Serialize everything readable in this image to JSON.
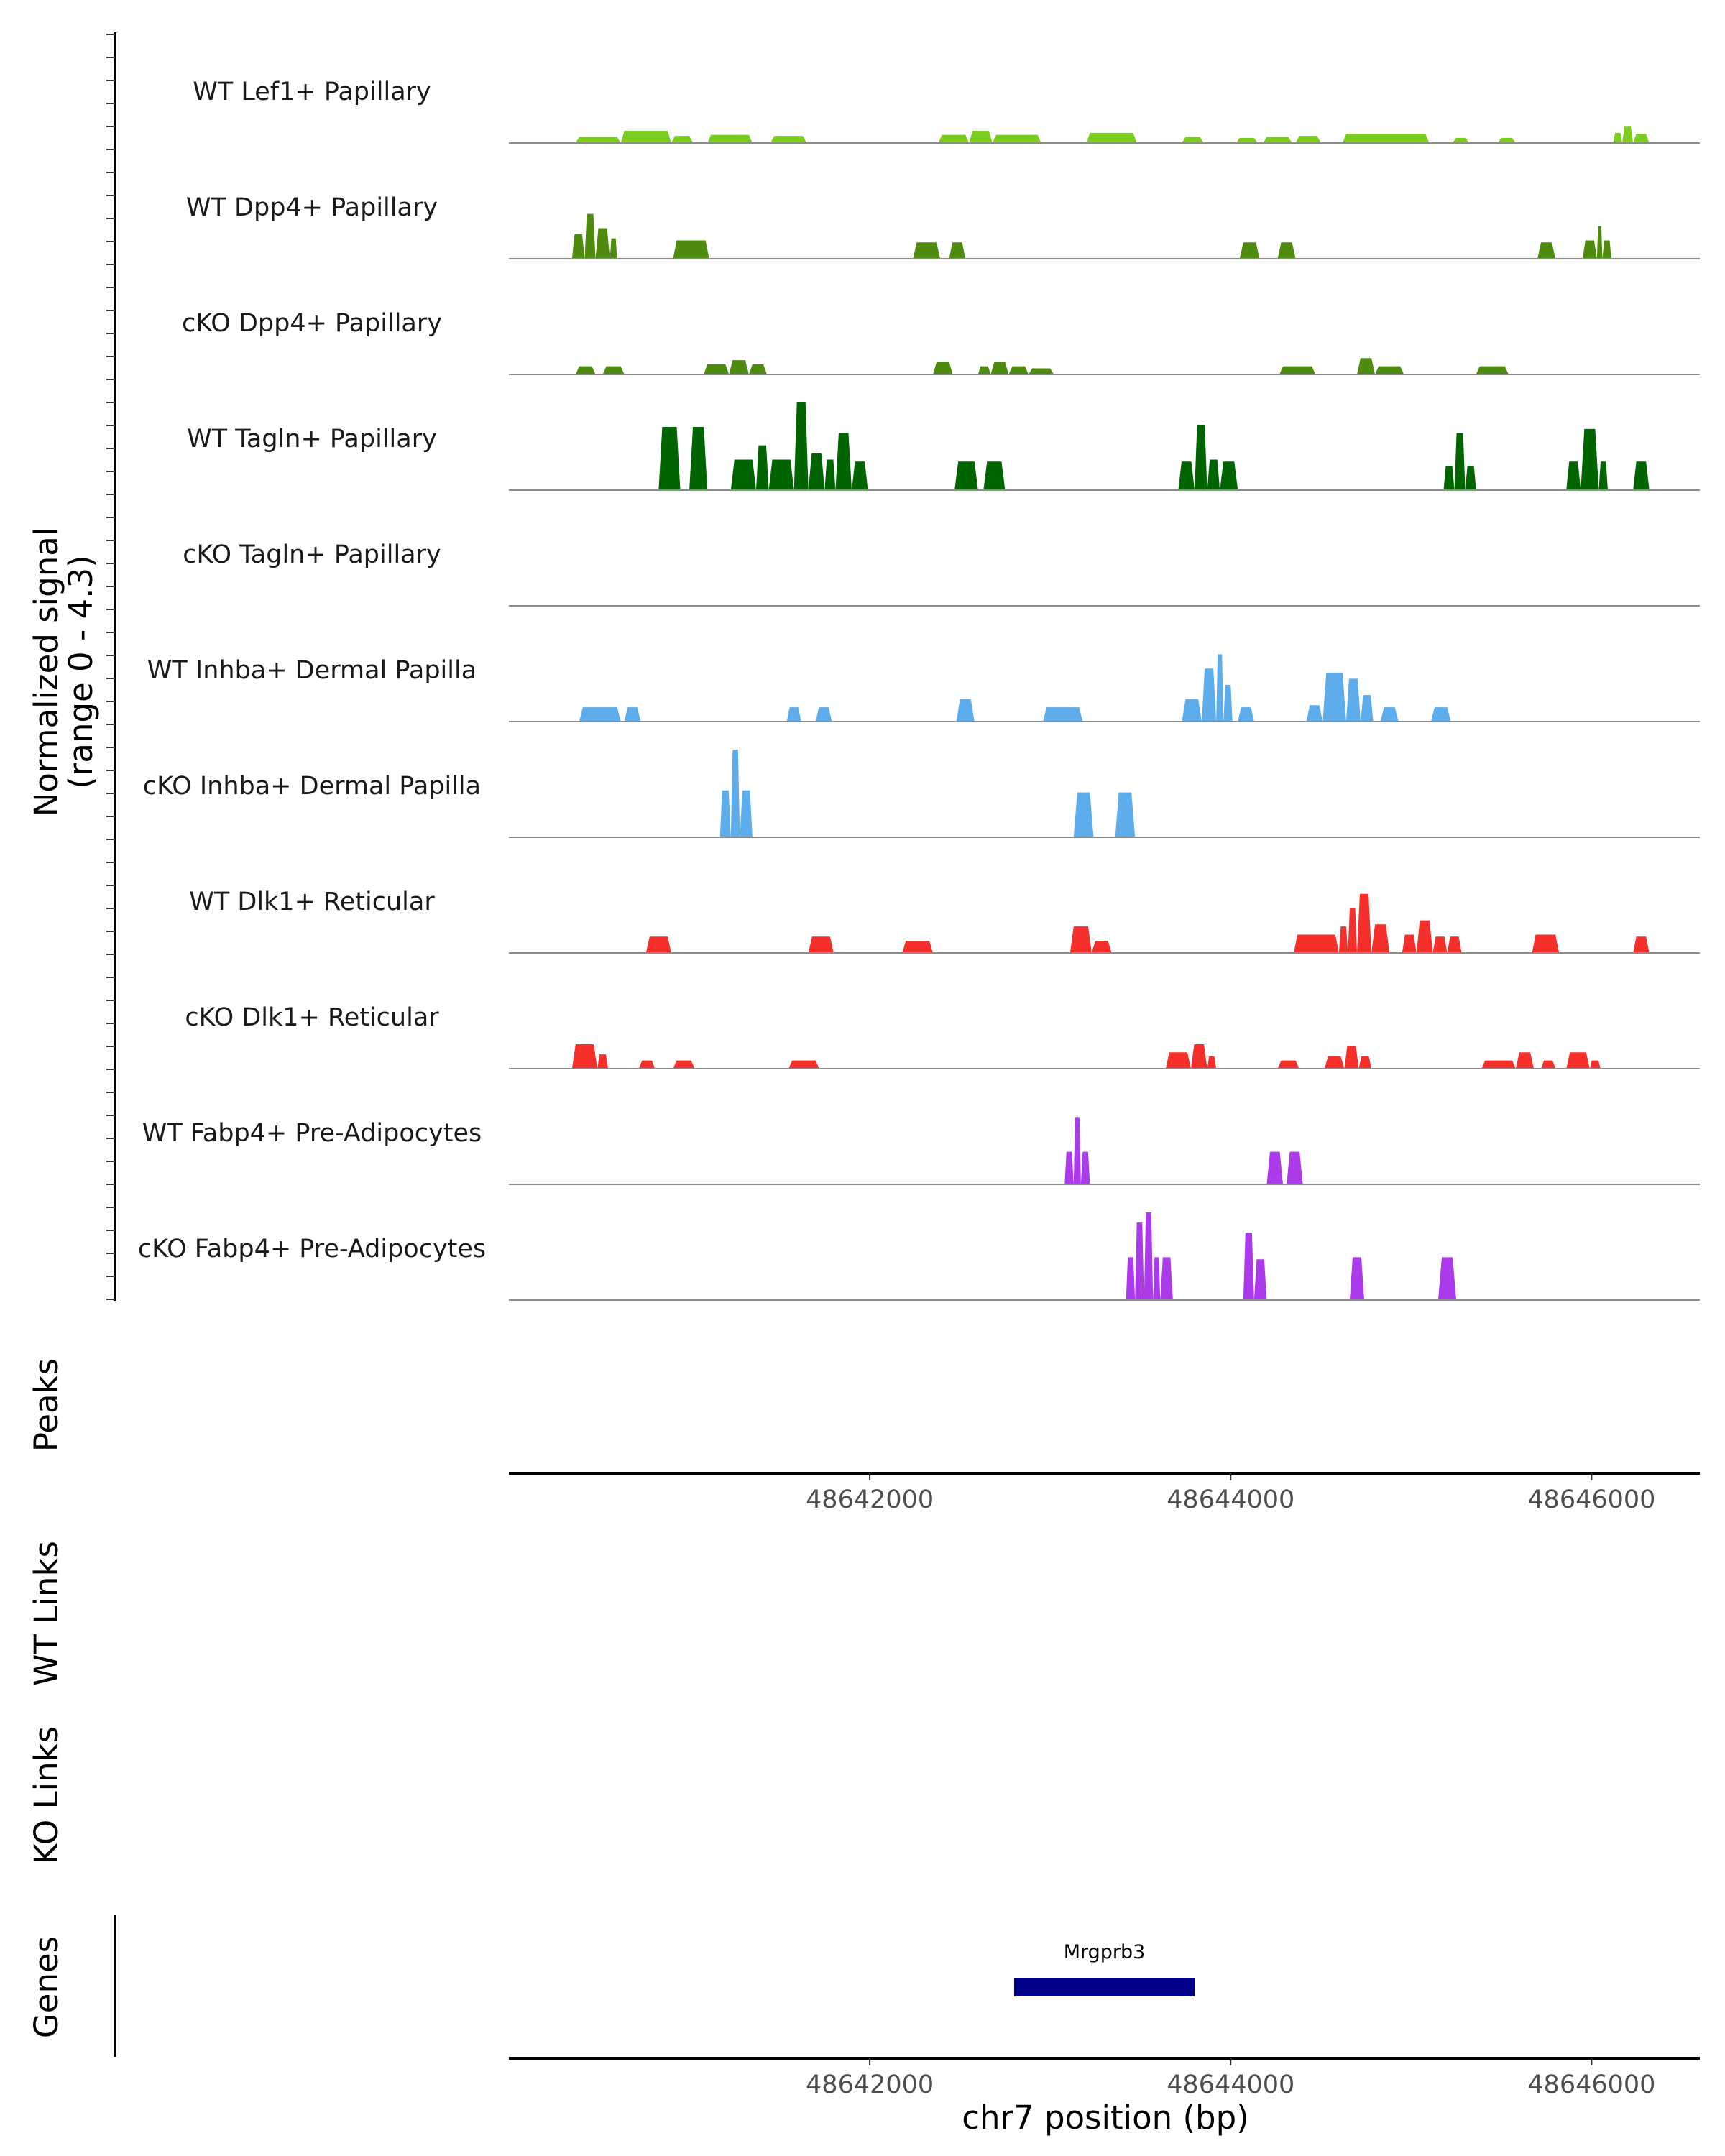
{
  "chart_data": {
    "type": "area",
    "title": "",
    "region": {
      "chromosome": "chr7",
      "start": 48640000,
      "end": 48646600
    },
    "ylabel_signal": "Normalized signal",
    "ylabel_range": "(range 0 - 4.3)",
    "ylim": [
      0,
      4.3
    ],
    "xlabel": "chr7 position (bp)",
    "xticks": [
      48642000,
      48644000,
      48646000
    ],
    "xtick_labels": [
      "48642000",
      "48644000",
      "48646000"
    ],
    "tracks": [
      {
        "name": "WT Lef1+ Papillary",
        "color": "#7CCD1F",
        "segments": [
          [
            48640370,
            48640620,
            0.3
          ],
          [
            48640620,
            48640900,
            0.6
          ],
          [
            48640900,
            48641020,
            0.35
          ],
          [
            48641100,
            48641350,
            0.4
          ],
          [
            48641450,
            48641650,
            0.35
          ],
          [
            48642380,
            48642550,
            0.4
          ],
          [
            48642550,
            48642680,
            0.6
          ],
          [
            48642680,
            48642950,
            0.4
          ],
          [
            48643200,
            48643480,
            0.5
          ],
          [
            48643730,
            48643850,
            0.3
          ],
          [
            48644030,
            48644150,
            0.25
          ],
          [
            48644180,
            48644340,
            0.3
          ],
          [
            48644360,
            48644500,
            0.35
          ],
          [
            48644620,
            48645100,
            0.45
          ],
          [
            48645230,
            48645320,
            0.25
          ],
          [
            48645480,
            48645580,
            0.25
          ],
          [
            48646120,
            48646170,
            0.5
          ],
          [
            48646170,
            48646230,
            0.8
          ],
          [
            48646230,
            48646320,
            0.45
          ]
        ]
      },
      {
        "name": "WT Dpp4+ Papillary",
        "color": "#4E8B0E",
        "segments": [
          [
            48640350,
            48640420,
            1.2
          ],
          [
            48640420,
            48640480,
            2.2
          ],
          [
            48640480,
            48640560,
            1.5
          ],
          [
            48640560,
            48640600,
            1.0
          ],
          [
            48640910,
            48641110,
            0.9
          ],
          [
            48642240,
            48642390,
            0.8
          ],
          [
            48642440,
            48642530,
            0.8
          ],
          [
            48644050,
            48644160,
            0.8
          ],
          [
            48644260,
            48644360,
            0.8
          ],
          [
            48645700,
            48645800,
            0.8
          ],
          [
            48645950,
            48646030,
            0.9
          ],
          [
            48646030,
            48646060,
            1.6
          ],
          [
            48646060,
            48646110,
            0.9
          ]
        ]
      },
      {
        "name": "cKO Dpp4+ Papillary",
        "color": "#4E8B0E",
        "segments": [
          [
            48640370,
            48640480,
            0.4
          ],
          [
            48640520,
            48640640,
            0.4
          ],
          [
            48641080,
            48641220,
            0.5
          ],
          [
            48641220,
            48641330,
            0.7
          ],
          [
            48641330,
            48641430,
            0.5
          ],
          [
            48642350,
            48642460,
            0.6
          ],
          [
            48642600,
            48642670,
            0.4
          ],
          [
            48642670,
            48642770,
            0.6
          ],
          [
            48642770,
            48642880,
            0.4
          ],
          [
            48642880,
            48643020,
            0.3
          ],
          [
            48644270,
            48644470,
            0.4
          ],
          [
            48644700,
            48644800,
            0.8
          ],
          [
            48644800,
            48644960,
            0.4
          ],
          [
            48645360,
            48645540,
            0.4
          ]
        ]
      },
      {
        "name": "WT Tagln+ Papillary",
        "color": "#006400",
        "segments": [
          [
            48640830,
            48640950,
            3.1
          ],
          [
            48641000,
            48641100,
            3.1
          ],
          [
            48641230,
            48641370,
            1.5
          ],
          [
            48641370,
            48641440,
            2.2
          ],
          [
            48641440,
            48641580,
            1.5
          ],
          [
            48641580,
            48641660,
            4.3
          ],
          [
            48641660,
            48641750,
            1.8
          ],
          [
            48641750,
            48641810,
            1.5
          ],
          [
            48641810,
            48641900,
            2.8
          ],
          [
            48641900,
            48641990,
            1.4
          ],
          [
            48642470,
            48642600,
            1.4
          ],
          [
            48642630,
            48642750,
            1.4
          ],
          [
            48643710,
            48643800,
            1.4
          ],
          [
            48643800,
            48643870,
            3.2
          ],
          [
            48643870,
            48643940,
            1.5
          ],
          [
            48643940,
            48644040,
            1.4
          ],
          [
            48645180,
            48645240,
            1.2
          ],
          [
            48645240,
            48645300,
            2.8
          ],
          [
            48645300,
            48645360,
            1.2
          ],
          [
            48645860,
            48645940,
            1.4
          ],
          [
            48645940,
            48646040,
            3.0
          ],
          [
            48646040,
            48646090,
            1.4
          ],
          [
            48646230,
            48646320,
            1.4
          ]
        ]
      },
      {
        "name": "cKO Tagln+ Papillary",
        "color": "#006400",
        "segments": []
      },
      {
        "name": "WT Inhba+ Dermal Papilla",
        "color": "#5DADEC",
        "segments": [
          [
            48640390,
            48640620,
            0.7
          ],
          [
            48640640,
            48640730,
            0.7
          ],
          [
            48641540,
            48641620,
            0.7
          ],
          [
            48641700,
            48641790,
            0.7
          ],
          [
            48642480,
            48642580,
            1.1
          ],
          [
            48642960,
            48643180,
            0.7
          ],
          [
            48643730,
            48643840,
            1.1
          ],
          [
            48643840,
            48643920,
            2.6
          ],
          [
            48643920,
            48643960,
            3.3
          ],
          [
            48643960,
            48644010,
            1.8
          ],
          [
            48644040,
            48644130,
            0.7
          ],
          [
            48644420,
            48644510,
            0.8
          ],
          [
            48644510,
            48644640,
            2.4
          ],
          [
            48644640,
            48644720,
            2.1
          ],
          [
            48644720,
            48644790,
            1.3
          ],
          [
            48644830,
            48644930,
            0.7
          ],
          [
            48645110,
            48645220,
            0.7
          ]
        ]
      },
      {
        "name": "cKO Inhba+ Dermal Papilla",
        "color": "#5DADEC",
        "segments": [
          [
            48641170,
            48641230,
            2.3
          ],
          [
            48641230,
            48641280,
            4.3
          ],
          [
            48641280,
            48641350,
            2.3
          ],
          [
            48643130,
            48643240,
            2.2
          ],
          [
            48643360,
            48643470,
            2.2
          ]
        ]
      },
      {
        "name": "WT Dlk1+ Reticular",
        "color": "#F5302A",
        "segments": [
          [
            48640760,
            48640900,
            0.8
          ],
          [
            48641660,
            48641800,
            0.8
          ],
          [
            48642180,
            48642350,
            0.6
          ],
          [
            48643110,
            48643230,
            1.3
          ],
          [
            48643230,
            48643340,
            0.6
          ],
          [
            48644350,
            48644600,
            0.9
          ],
          [
            48644600,
            48644650,
            1.3
          ],
          [
            48644650,
            48644700,
            2.2
          ],
          [
            48644700,
            48644780,
            2.9
          ],
          [
            48644780,
            48644880,
            1.4
          ],
          [
            48644950,
            48645030,
            0.9
          ],
          [
            48645030,
            48645120,
            1.6
          ],
          [
            48645120,
            48645200,
            0.8
          ],
          [
            48645200,
            48645280,
            0.8
          ],
          [
            48645670,
            48645820,
            0.9
          ],
          [
            48646230,
            48646320,
            0.8
          ]
        ]
      },
      {
        "name": "cKO Dlk1+ Reticular",
        "color": "#F5302A",
        "segments": [
          [
            48640350,
            48640490,
            1.2
          ],
          [
            48640490,
            48640550,
            0.7
          ],
          [
            48640720,
            48640810,
            0.4
          ],
          [
            48640910,
            48641030,
            0.4
          ],
          [
            48641550,
            48641720,
            0.4
          ],
          [
            48643640,
            48643780,
            0.8
          ],
          [
            48643780,
            48643870,
            1.2
          ],
          [
            48643870,
            48643920,
            0.6
          ],
          [
            48644260,
            48644380,
            0.4
          ],
          [
            48644520,
            48644630,
            0.6
          ],
          [
            48644630,
            48644710,
            1.1
          ],
          [
            48644710,
            48644780,
            0.6
          ],
          [
            48645390,
            48645580,
            0.4
          ],
          [
            48645580,
            48645680,
            0.8
          ],
          [
            48645720,
            48645800,
            0.4
          ],
          [
            48645860,
            48645990,
            0.8
          ],
          [
            48645990,
            48646050,
            0.4
          ]
        ]
      },
      {
        "name": "WT Fabp4+ Pre-Adipocytes",
        "color": "#AA3AEA",
        "segments": [
          [
            48643080,
            48643130,
            1.6
          ],
          [
            48643130,
            48643170,
            3.3
          ],
          [
            48643170,
            48643220,
            1.6
          ],
          [
            48644200,
            48644290,
            1.6
          ],
          [
            48644310,
            48644400,
            1.6
          ]
        ]
      },
      {
        "name": "cKO Fabp4+ Pre-Adipocytes",
        "color": "#AA3AEA",
        "segments": [
          [
            48643420,
            48643470,
            2.1
          ],
          [
            48643470,
            48643520,
            3.8
          ],
          [
            48643520,
            48643570,
            4.3
          ],
          [
            48643570,
            48643610,
            2.1
          ],
          [
            48643610,
            48643680,
            2.1
          ],
          [
            48644070,
            48644130,
            3.3
          ],
          [
            48644130,
            48644200,
            2.0
          ],
          [
            48644660,
            48644740,
            2.1
          ],
          [
            48645150,
            48645250,
            2.1
          ]
        ]
      }
    ],
    "side_labels": [
      "Peaks",
      "WT Links",
      "KO Links",
      "Genes"
    ],
    "genes": [
      {
        "name": "Mrgprb3",
        "start": 48642800,
        "end": 48643800,
        "color": "#00008B"
      }
    ]
  }
}
